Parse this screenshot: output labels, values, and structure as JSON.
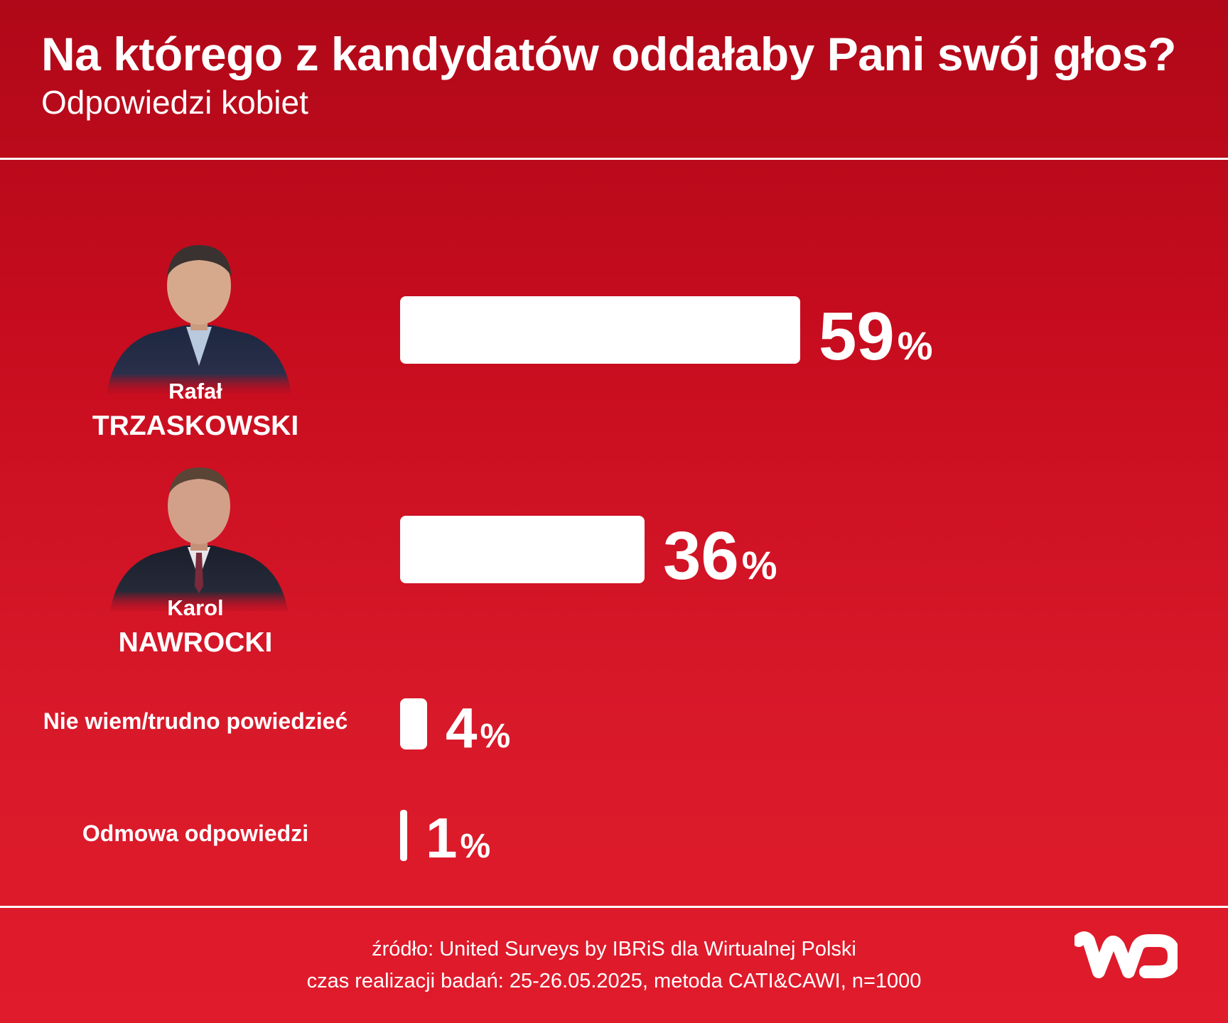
{
  "header": {
    "title": "Na którego z kandydatów oddałaby Pani swój głos?",
    "subtitle": "Odpowiedzi kobiet"
  },
  "chart_data": {
    "type": "bar",
    "orientation": "horizontal",
    "title": "Na którego z kandydatów oddałaby Pani swój głos?",
    "subtitle": "Odpowiedzi kobiet",
    "unit": "%",
    "categories": [
      "Rafał TRZASKOWSKI",
      "Karol NAWROCKI",
      "Nie wiem/trudno powiedzieć",
      "Odmowa odpowiedzi"
    ],
    "values": [
      59,
      36,
      4,
      1
    ],
    "rows": [
      {
        "first_name": "Rafał",
        "last_name": "TRZASKOWSKI",
        "value": 59,
        "pct": "%",
        "photo": "candidate-photo"
      },
      {
        "first_name": "Karol",
        "last_name": "NAWROCKI",
        "value": 36,
        "pct": "%",
        "photo": "candidate-photo"
      },
      {
        "label": "Nie wiem/trudno powiedzieć",
        "value": 4,
        "pct": "%"
      },
      {
        "label": "Odmowa odpowiedzi",
        "value": 1,
        "pct": "%"
      }
    ],
    "xlim": [
      0,
      100
    ],
    "grid": false,
    "legend": "none",
    "bar_color": "#ffffff",
    "background_color": "#d01324"
  },
  "footer": {
    "source_line": "źródło: United Surveys by IBRiS dla Wirtualnej Polski",
    "method_line": "czas realizacji badań: 25-26.05.2025, metoda CATI&CAWI, n=1000"
  },
  "logo": {
    "icon": "wp-logo-icon"
  }
}
